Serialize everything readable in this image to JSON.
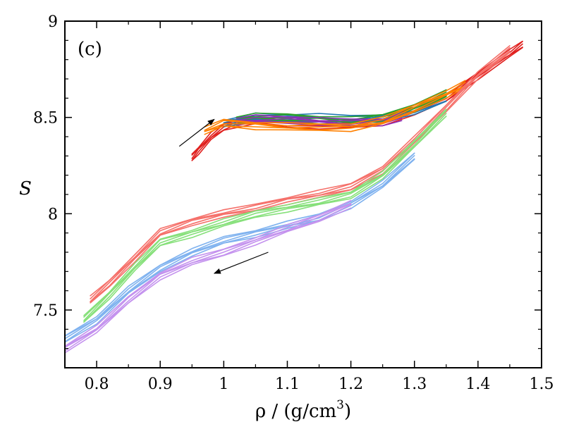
{
  "chart_data": {
    "type": "line",
    "panel_label": "(c)",
    "xlabel": "ρ / (g/cm³)",
    "xlabel_parts": {
      "prefix": "ρ / (g/cm",
      "superscript": "3",
      "suffix": ")"
    },
    "ylabel": "S",
    "xlim": [
      0.75,
      1.5
    ],
    "ylim": [
      7.2,
      9.0
    ],
    "xticks": [
      0.8,
      0.9,
      1.0,
      1.1,
      1.2,
      1.3,
      1.4,
      1.5
    ],
    "xtick_labels": [
      "0.8",
      "0.9",
      "1",
      "1.1",
      "1.2",
      "1.3",
      "1.4",
      "1.5"
    ],
    "yticks": [
      7.5,
      8.0,
      8.5,
      9.0
    ],
    "ytick_labels": [
      "7.5",
      "8",
      "8.5",
      "9"
    ],
    "grid": false,
    "series": [
      {
        "name": "compression-red",
        "color": "#e0201e",
        "x": [
          0.95,
          0.96,
          0.98,
          1.0,
          1.02,
          1.05,
          1.1,
          1.15,
          1.2,
          1.25,
          1.3,
          1.35,
          1.4,
          1.45,
          1.47
        ],
        "y": [
          8.29,
          8.33,
          8.4,
          8.45,
          8.47,
          8.48,
          8.47,
          8.46,
          8.46,
          8.48,
          8.53,
          8.6,
          8.72,
          8.83,
          8.88
        ]
      },
      {
        "name": "compression-blue",
        "color": "#1f77b4",
        "x": [
          1.0,
          1.03,
          1.05,
          1.1,
          1.15,
          1.2,
          1.25,
          1.3,
          1.35
        ],
        "y": [
          8.47,
          8.49,
          8.5,
          8.5,
          8.5,
          8.49,
          8.5,
          8.53,
          8.6
        ]
      },
      {
        "name": "compression-green",
        "color": "#2ca02c",
        "x": [
          1.02,
          1.05,
          1.1,
          1.15,
          1.2,
          1.25,
          1.3,
          1.35
        ],
        "y": [
          8.49,
          8.5,
          8.5,
          8.49,
          8.48,
          8.5,
          8.55,
          8.62
        ]
      },
      {
        "name": "compression-purple",
        "color": "#8e2fb8",
        "x": [
          1.02,
          1.05,
          1.1,
          1.15,
          1.2,
          1.25,
          1.28
        ],
        "y": [
          8.48,
          8.49,
          8.49,
          8.48,
          8.47,
          8.48,
          8.5
        ]
      },
      {
        "name": "compression-orange",
        "color": "#ff8000",
        "x": [
          0.97,
          1.0,
          1.05,
          1.1,
          1.15,
          1.2,
          1.25,
          1.3,
          1.35,
          1.38
        ],
        "y": [
          8.43,
          8.47,
          8.46,
          8.45,
          8.45,
          8.45,
          8.48,
          8.55,
          8.62,
          8.67
        ]
      },
      {
        "name": "decompression-salmon",
        "color": "#f5706a",
        "x": [
          0.79,
          0.82,
          0.86,
          0.9,
          0.95,
          1.0,
          1.05,
          1.1,
          1.15,
          1.2,
          1.25,
          1.3,
          1.35,
          1.4,
          1.45
        ],
        "y": [
          7.55,
          7.64,
          7.77,
          7.9,
          7.96,
          8.0,
          8.03,
          8.07,
          8.1,
          8.14,
          8.23,
          8.38,
          8.55,
          8.72,
          8.85
        ]
      },
      {
        "name": "decompression-green",
        "color": "#86e07a",
        "x": [
          0.78,
          0.82,
          0.86,
          0.9,
          0.95,
          1.0,
          1.05,
          1.1,
          1.15,
          1.2,
          1.25,
          1.3,
          1.35
        ],
        "y": [
          7.45,
          7.58,
          7.72,
          7.85,
          7.9,
          7.95,
          8.0,
          8.03,
          8.06,
          8.1,
          8.2,
          8.36,
          8.53
        ]
      },
      {
        "name": "decompression-lightblue",
        "color": "#7fb2ef",
        "x": [
          0.75,
          0.8,
          0.85,
          0.9,
          0.95,
          1.0,
          1.05,
          1.1,
          1.15,
          1.2,
          1.25,
          1.3
        ],
        "y": [
          7.35,
          7.45,
          7.6,
          7.72,
          7.8,
          7.86,
          7.9,
          7.94,
          7.98,
          8.05,
          8.15,
          8.3
        ]
      },
      {
        "name": "decompression-lavender",
        "color": "#c492ee",
        "x": [
          0.75,
          0.8,
          0.85,
          0.9,
          0.95,
          1.0,
          1.05,
          1.1,
          1.15,
          1.2
        ],
        "y": [
          7.3,
          7.4,
          7.55,
          7.68,
          7.75,
          7.8,
          7.86,
          7.92,
          7.98,
          8.05
        ]
      }
    ],
    "annotations": [
      {
        "type": "arrow",
        "direction": "compression",
        "from": [
          0.93,
          8.35
        ],
        "to": [
          0.985,
          8.49
        ]
      },
      {
        "type": "arrow",
        "direction": "decompression",
        "from": [
          1.07,
          7.8
        ],
        "to": [
          0.985,
          7.69
        ]
      }
    ]
  }
}
